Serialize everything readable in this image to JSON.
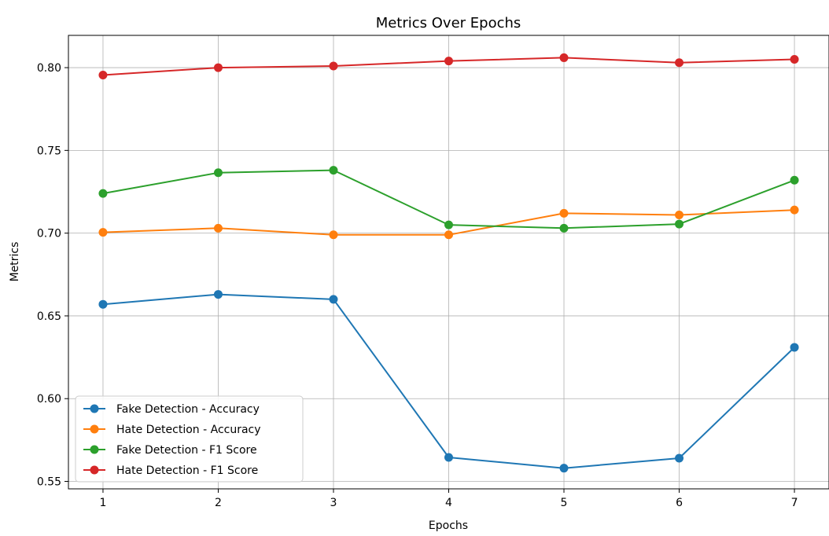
{
  "chart_data": {
    "type": "line",
    "title": "Metrics Over Epochs",
    "xlabel": "Epochs",
    "ylabel": "Metrics",
    "x": [
      1,
      2,
      3,
      4,
      5,
      6,
      7
    ],
    "xlim": [
      0.7,
      7.3
    ],
    "ylim": [
      0.5455,
      0.8195
    ],
    "xticks": [
      "1",
      "2",
      "3",
      "4",
      "5",
      "6",
      "7"
    ],
    "yticks": [
      {
        "value": 0.55,
        "label": "0.55"
      },
      {
        "value": 0.6,
        "label": "0.60"
      },
      {
        "value": 0.65,
        "label": "0.65"
      },
      {
        "value": 0.7,
        "label": "0.70"
      },
      {
        "value": 0.75,
        "label": "0.75"
      },
      {
        "value": 0.8,
        "label": "0.80"
      }
    ],
    "grid": true,
    "legend_position": "lower-left",
    "series": [
      {
        "name": "Fake Detection - Accuracy",
        "color": "#1f77b4",
        "values": [
          0.657,
          0.663,
          0.66,
          0.5645,
          0.558,
          0.564,
          0.631
        ]
      },
      {
        "name": "Hate Detection - Accuracy",
        "color": "#ff7f0e",
        "values": [
          0.7005,
          0.703,
          0.699,
          0.699,
          0.712,
          0.711,
          0.714
        ]
      },
      {
        "name": "Fake Detection - F1 Score",
        "color": "#2ca02c",
        "values": [
          0.724,
          0.7365,
          0.738,
          0.705,
          0.703,
          0.7055,
          0.732
        ]
      },
      {
        "name": "Hate Detection - F1 Score",
        "color": "#d62728",
        "values": [
          0.7955,
          0.8,
          0.801,
          0.804,
          0.806,
          0.803,
          0.805
        ]
      }
    ]
  }
}
